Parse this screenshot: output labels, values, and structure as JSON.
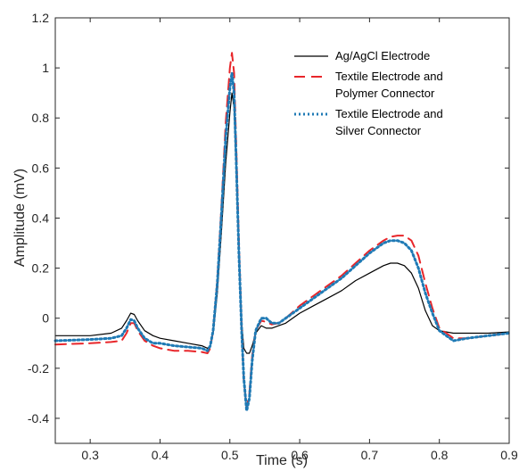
{
  "chart_data": {
    "type": "line",
    "xlabel": "Time (s)",
    "ylabel": "Amplitude (mV)",
    "xlim": [
      0.25,
      0.9
    ],
    "ylim": [
      -0.5,
      1.2
    ],
    "xticks": [
      "0.3",
      "0.4",
      "0.5",
      "0.6",
      "0.7",
      "0.8",
      "0.9"
    ],
    "yticks": [
      "-0.4",
      "-0.2",
      "0",
      "0.2",
      "0.4",
      "0.6",
      "0.8",
      "1",
      "1.2"
    ],
    "grid": false,
    "legend_position": "top-right",
    "series": [
      {
        "name": "Ag/AgCl Electrode",
        "legend_lines": [
          "Ag/AgCl Electrode"
        ],
        "color": "#000000",
        "style": "solid",
        "x": [
          0.25,
          0.3,
          0.33,
          0.345,
          0.352,
          0.358,
          0.363,
          0.368,
          0.378,
          0.39,
          0.4,
          0.42,
          0.44,
          0.46,
          0.468,
          0.472,
          0.476,
          0.482,
          0.488,
          0.494,
          0.5,
          0.503,
          0.506,
          0.509,
          0.513,
          0.517,
          0.52,
          0.524,
          0.528,
          0.532,
          0.537,
          0.545,
          0.552,
          0.56,
          0.57,
          0.58,
          0.6,
          0.62,
          0.64,
          0.66,
          0.68,
          0.7,
          0.72,
          0.73,
          0.74,
          0.75,
          0.76,
          0.77,
          0.78,
          0.79,
          0.8,
          0.82,
          0.84,
          0.87,
          0.9
        ],
        "y": [
          -0.07,
          -0.07,
          -0.06,
          -0.04,
          -0.01,
          0.02,
          0.015,
          -0.01,
          -0.05,
          -0.07,
          -0.08,
          -0.09,
          -0.1,
          -0.11,
          -0.12,
          -0.11,
          -0.06,
          0.1,
          0.35,
          0.62,
          0.82,
          0.9,
          0.84,
          0.6,
          0.25,
          -0.02,
          -0.12,
          -0.14,
          -0.14,
          -0.11,
          -0.06,
          -0.03,
          -0.04,
          -0.04,
          -0.03,
          -0.02,
          0.02,
          0.05,
          0.08,
          0.11,
          0.15,
          0.18,
          0.21,
          0.22,
          0.22,
          0.21,
          0.18,
          0.12,
          0.03,
          -0.03,
          -0.05,
          -0.06,
          -0.06,
          -0.06,
          -0.055
        ]
      },
      {
        "name": "Textile Electrode and Polymer Connector",
        "legend_lines": [
          "Textile Electrode and",
          "Polymer Connector"
        ],
        "color": "#e8262a",
        "style": "dashed",
        "x": [
          0.25,
          0.3,
          0.33,
          0.345,
          0.352,
          0.358,
          0.363,
          0.368,
          0.378,
          0.39,
          0.4,
          0.42,
          0.44,
          0.46,
          0.468,
          0.472,
          0.476,
          0.482,
          0.488,
          0.494,
          0.5,
          0.503,
          0.506,
          0.509,
          0.513,
          0.517,
          0.52,
          0.524,
          0.528,
          0.532,
          0.537,
          0.545,
          0.552,
          0.56,
          0.57,
          0.58,
          0.6,
          0.62,
          0.64,
          0.66,
          0.68,
          0.7,
          0.72,
          0.73,
          0.74,
          0.75,
          0.76,
          0.77,
          0.78,
          0.79,
          0.8,
          0.82,
          0.84,
          0.87,
          0.9
        ],
        "y": [
          -0.105,
          -0.1,
          -0.095,
          -0.09,
          -0.06,
          -0.02,
          -0.02,
          -0.05,
          -0.09,
          -0.11,
          -0.12,
          -0.13,
          -0.13,
          -0.135,
          -0.14,
          -0.12,
          -0.05,
          0.15,
          0.45,
          0.78,
          1.0,
          1.06,
          0.98,
          0.7,
          0.3,
          -0.05,
          -0.25,
          -0.36,
          -0.3,
          -0.15,
          -0.05,
          -0.01,
          -0.015,
          -0.025,
          -0.02,
          0.0,
          0.05,
          0.09,
          0.13,
          0.17,
          0.22,
          0.27,
          0.31,
          0.325,
          0.33,
          0.33,
          0.31,
          0.25,
          0.14,
          0.04,
          -0.04,
          -0.08,
          -0.08,
          -0.07,
          -0.06
        ]
      },
      {
        "name": "Textile Electrode and Silver Connector",
        "legend_lines": [
          "Textile Electrode and",
          "Silver Connector"
        ],
        "color": "#1f7ab5",
        "style": "dotted",
        "x": [
          0.25,
          0.3,
          0.33,
          0.345,
          0.352,
          0.358,
          0.363,
          0.368,
          0.378,
          0.39,
          0.4,
          0.42,
          0.44,
          0.46,
          0.468,
          0.472,
          0.476,
          0.482,
          0.488,
          0.494,
          0.5,
          0.503,
          0.506,
          0.509,
          0.513,
          0.517,
          0.52,
          0.524,
          0.528,
          0.532,
          0.537,
          0.545,
          0.552,
          0.56,
          0.57,
          0.58,
          0.6,
          0.62,
          0.64,
          0.66,
          0.68,
          0.7,
          0.72,
          0.73,
          0.74,
          0.75,
          0.76,
          0.77,
          0.78,
          0.79,
          0.8,
          0.82,
          0.84,
          0.87,
          0.9
        ],
        "y": [
          -0.09,
          -0.085,
          -0.08,
          -0.07,
          -0.04,
          -0.005,
          -0.01,
          -0.04,
          -0.08,
          -0.1,
          -0.1,
          -0.11,
          -0.115,
          -0.12,
          -0.13,
          -0.11,
          -0.05,
          0.14,
          0.42,
          0.72,
          0.92,
          0.98,
          0.9,
          0.64,
          0.26,
          -0.06,
          -0.24,
          -0.37,
          -0.32,
          -0.17,
          -0.05,
          0.0,
          0.0,
          -0.02,
          -0.02,
          0.0,
          0.04,
          0.08,
          0.12,
          0.16,
          0.21,
          0.26,
          0.3,
          0.31,
          0.31,
          0.3,
          0.27,
          0.2,
          0.1,
          0.02,
          -0.05,
          -0.09,
          -0.08,
          -0.07,
          -0.06
        ]
      }
    ]
  }
}
